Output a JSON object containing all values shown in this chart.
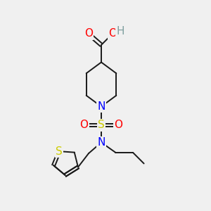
{
  "bg_color": "#f0f0f0",
  "bond_color": "#1a1a1a",
  "N_color": "#0000ff",
  "O_color": "#ff0000",
  "S_color": "#cccc00",
  "H_color": "#7fa0a0",
  "line_width": 1.4,
  "font_size": 11,
  "fig_w": 3.0,
  "fig_h": 3.0,
  "dpi": 100,
  "xlim": [
    0,
    10
  ],
  "ylim": [
    0,
    10
  ]
}
